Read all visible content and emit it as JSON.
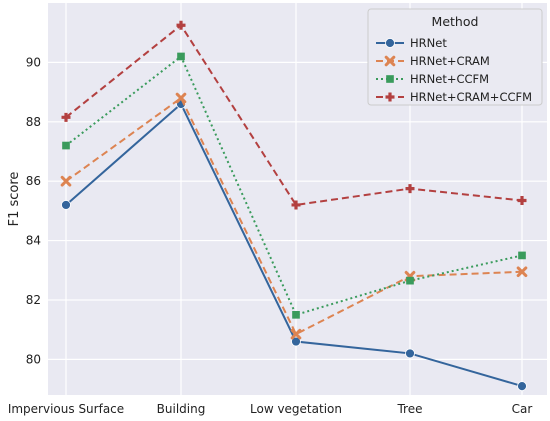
{
  "chart_data": {
    "type": "line",
    "categories": [
      "Impervious Surface",
      "Building",
      "Low vegetation",
      "Tree",
      "Car"
    ],
    "ylabel": "F1 score",
    "xlabel": "",
    "ylim": [
      78.8,
      92.0
    ],
    "yticks": [
      80,
      82,
      84,
      86,
      88,
      90
    ],
    "grid": true,
    "background": "#e9e9f2",
    "legend": {
      "title": "Method",
      "position": "top-right"
    },
    "series": [
      {
        "name": "HRNet",
        "values": [
          85.2,
          88.6,
          80.6,
          80.2,
          79.1
        ],
        "color": "#34659c",
        "line_style": "solid",
        "marker": "circle"
      },
      {
        "name": "HRNet+CRAM",
        "values": [
          86.0,
          88.8,
          80.85,
          82.8,
          82.95
        ],
        "color": "#dd8452",
        "line_style": "dashed",
        "marker": "x"
      },
      {
        "name": "HRNet+CCFM",
        "values": [
          87.2,
          90.2,
          81.5,
          82.65,
          83.5
        ],
        "color": "#3a9b5c",
        "line_style": "dotted",
        "marker": "square"
      },
      {
        "name": "HRNet+CRAM+CCFM",
        "values": [
          88.15,
          91.25,
          85.2,
          85.75,
          85.35
        ],
        "color": "#b34040",
        "line_style": "dashed",
        "marker": "plus"
      }
    ]
  }
}
